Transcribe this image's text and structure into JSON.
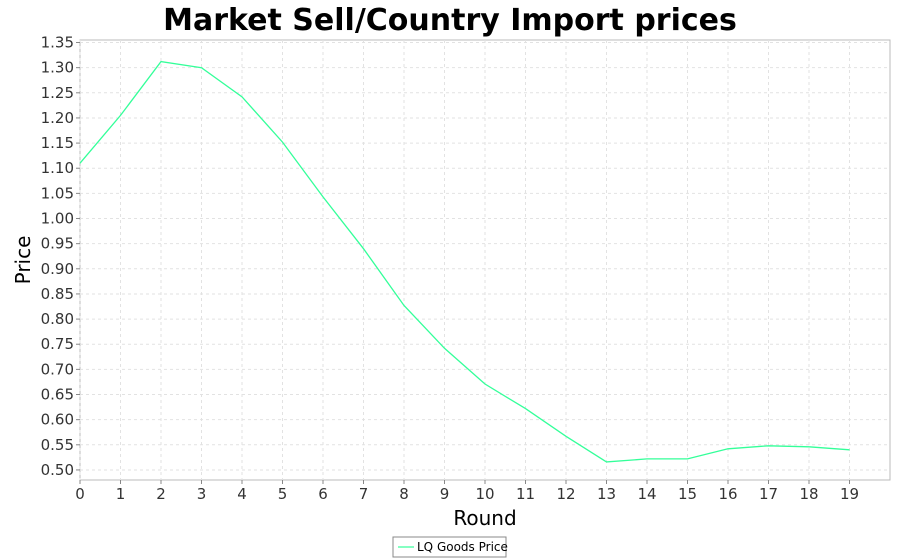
{
  "chart_data": {
    "type": "line",
    "title": "Market Sell/Country Import prices",
    "xlabel": "Round",
    "ylabel": "Price",
    "xlim": [
      0,
      20
    ],
    "ylim": [
      0.48,
      1.355
    ],
    "x_ticks": [
      0,
      1,
      2,
      3,
      4,
      5,
      6,
      7,
      8,
      9,
      10,
      11,
      12,
      13,
      14,
      15,
      16,
      17,
      18,
      19
    ],
    "y_ticks": [
      "0.50",
      "0.55",
      "0.60",
      "0.65",
      "0.70",
      "0.75",
      "0.80",
      "0.85",
      "0.90",
      "0.95",
      "1.00",
      "1.05",
      "1.10",
      "1.15",
      "1.20",
      "1.25",
      "1.30",
      "1.35"
    ],
    "grid": true,
    "legend_position": "bottom-center",
    "series": [
      {
        "name": "LQ Goods Price",
        "color": "#33ff99",
        "x": [
          0,
          1,
          2,
          3,
          4,
          5,
          6,
          7,
          8,
          9,
          10,
          11,
          12,
          13,
          14,
          15,
          16,
          17,
          18,
          19
        ],
        "y": [
          1.11,
          1.205,
          1.312,
          1.3,
          1.242,
          1.152,
          1.043,
          0.94,
          0.827,
          0.742,
          0.671,
          0.622,
          0.567,
          0.516,
          0.522,
          0.522,
          0.542,
          0.548,
          0.546,
          0.54
        ]
      }
    ]
  }
}
